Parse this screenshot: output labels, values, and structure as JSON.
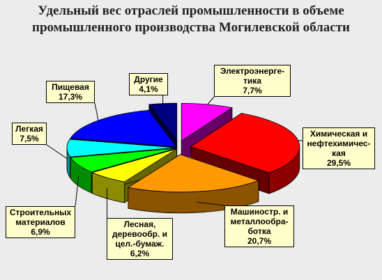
{
  "chart_data": {
    "type": "pie",
    "title_lines": [
      "Удельный вес отраслей промышленности в объеме",
      "промышленного производства Могилевской области"
    ],
    "slices": [
      {
        "id": "electro",
        "label": "Электроэнерге-\nтика",
        "value_text": "7,7%",
        "value": 7.7,
        "color": "#ff00ff",
        "exploded": true
      },
      {
        "id": "chem",
        "label": "Химическая и\nнефтехимичес-\nкая",
        "value_text": "29,5%",
        "value": 29.5,
        "color": "#ff0000",
        "exploded": true
      },
      {
        "id": "mach",
        "label": "Машиностр. и\nметаллообра-\nботка",
        "value_text": "20,7%",
        "value": 20.7,
        "color": "#ff9900",
        "exploded": true
      },
      {
        "id": "forest",
        "label": "Лесная,\nдеревообр. и\nцел.-бумаж.",
        "value_text": "6,2%",
        "value": 6.2,
        "color": "#ffff00",
        "exploded": false
      },
      {
        "id": "build",
        "label": "Строительных\nматериалов",
        "value_text": "6,9%",
        "value": 6.9,
        "color": "#00ff00",
        "exploded": false
      },
      {
        "id": "light",
        "label": "Легкая",
        "value_text": "7,5%",
        "value": 7.5,
        "color": "#00ffff",
        "exploded": false
      },
      {
        "id": "food",
        "label": "Пищевая",
        "value_text": "17,3%",
        "value": 17.3,
        "color": "#0000ff",
        "exploded": false
      },
      {
        "id": "other",
        "label": "Другие",
        "value_text": "4,1%",
        "value": 4.1,
        "color": "#000080",
        "exploded": true
      }
    ]
  }
}
